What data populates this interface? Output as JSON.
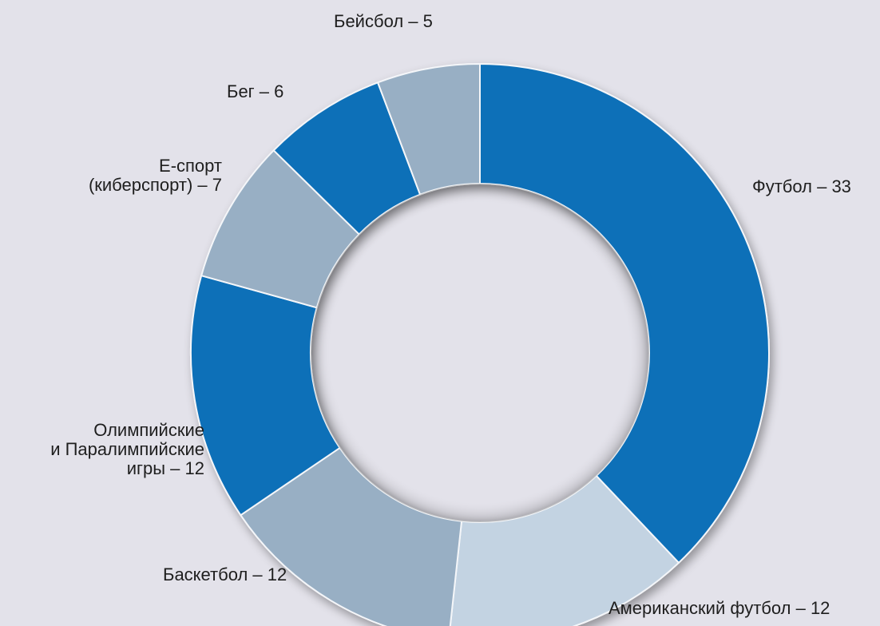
{
  "chart_data": {
    "type": "donut",
    "title": "",
    "start_angle_deg": 0,
    "direction": "clockwise",
    "colors": {
      "dark_blue": "#0f6fb8",
      "steel": "#98afc4",
      "light": "#c3d3e2",
      "background": "#e3e2ea",
      "separator": "#f4f6f9"
    },
    "segments": [
      {
        "lines": [
          "Футбол – 33"
        ],
        "name": "Футбол",
        "value": 33,
        "color": "#0f6fb8"
      },
      {
        "lines": [
          "Американский футбол – 12"
        ],
        "name": "Американский футбол",
        "value": 12,
        "color": "#c3d3e2"
      },
      {
        "lines": [
          "Баскетбол – 12"
        ],
        "name": "Баскетбол",
        "value": 12,
        "color": "#98afc4"
      },
      {
        "lines": [
          "Олимпийские",
          "и Паралимпийские",
          "игры – 12"
        ],
        "name": "Олимпийские и Паралимпийские игры",
        "value": 12,
        "color": "#0f6fb8"
      },
      {
        "lines": [
          "E-спорт",
          "(киберспорт) – 7"
        ],
        "name": "E-спорт (киберспорт)",
        "value": 7,
        "color": "#98afc4"
      },
      {
        "lines": [
          "Бег – 6"
        ],
        "name": "Бег",
        "value": 6,
        "color": "#0f6fb8"
      },
      {
        "lines": [
          "Бейсбол – 5"
        ],
        "name": "Бейсбол",
        "value": 5,
        "color": "#98afc4"
      }
    ]
  }
}
